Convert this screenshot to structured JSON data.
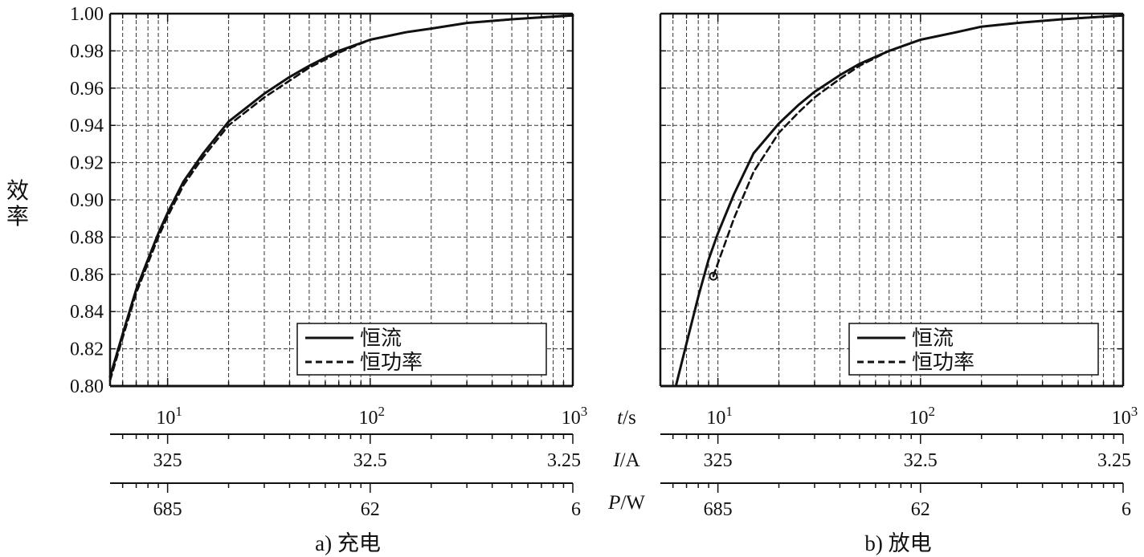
{
  "figure": {
    "ylabel": "效率",
    "unit_labels": {
      "t": "t/s",
      "I": "I/A",
      "P": "P/W"
    }
  },
  "chart_data": [
    {
      "type": "line",
      "caption": "a) 充电",
      "x_scale": "log",
      "xlim": [
        5.2,
        1000
      ],
      "ylim": [
        0.8,
        1.0
      ],
      "yticks": [
        "0.80",
        "0.82",
        "0.84",
        "0.86",
        "0.88",
        "0.90",
        "0.92",
        "0.94",
        "0.96",
        "0.98",
        "1.00"
      ],
      "x_ticks": [
        {
          "value": 10,
          "label": "10",
          "exp": "1"
        },
        {
          "value": 100,
          "label": "10",
          "exp": "2"
        },
        {
          "value": 1000,
          "label": "10",
          "exp": "3"
        }
      ],
      "current_ticks": [
        {
          "t": 10,
          "label": "325"
        },
        {
          "t": 100,
          "label": "32.5"
        },
        {
          "t": 1000,
          "label": "3.25"
        }
      ],
      "power_ticks": [
        {
          "t": 10,
          "label": "685"
        },
        {
          "t": 100,
          "label": "62"
        },
        {
          "t": 1000,
          "label": "6"
        }
      ],
      "legend": {
        "position": "bottom-right",
        "entries": [
          "恒流",
          "恒功率"
        ]
      },
      "series": [
        {
          "name": "恒流",
          "style": "solid",
          "x": [
            5.2,
            6,
            7,
            8,
            9,
            10,
            12,
            15,
            20,
            30,
            40,
            50,
            70,
            100,
            150,
            200,
            300,
            500,
            700,
            1000
          ],
          "y": [
            0.805,
            0.828,
            0.852,
            0.868,
            0.882,
            0.893,
            0.91,
            0.925,
            0.942,
            0.957,
            0.966,
            0.972,
            0.98,
            0.986,
            0.99,
            0.992,
            0.995,
            0.997,
            0.998,
            0.999
          ]
        },
        {
          "name": "恒功率",
          "style": "dashed",
          "x": [
            5.2,
            6,
            7,
            8,
            9,
            10,
            12,
            15,
            20,
            30,
            40,
            50,
            70,
            100,
            150,
            200,
            300,
            500,
            700,
            1000
          ],
          "y": [
            0.803,
            0.826,
            0.85,
            0.866,
            0.88,
            0.891,
            0.908,
            0.923,
            0.94,
            0.955,
            0.964,
            0.971,
            0.979,
            0.986,
            0.99,
            0.992,
            0.995,
            0.997,
            0.998,
            0.999
          ]
        }
      ]
    },
    {
      "type": "line",
      "caption": "b) 放电",
      "x_scale": "log",
      "xlim": [
        5.2,
        1000
      ],
      "ylim": [
        0.8,
        1.0
      ],
      "x_ticks": [
        {
          "value": 10,
          "label": "10",
          "exp": "1"
        },
        {
          "value": 100,
          "label": "10",
          "exp": "2"
        },
        {
          "value": 1000,
          "label": "10",
          "exp": "3"
        }
      ],
      "current_ticks": [
        {
          "t": 10,
          "label": "325"
        },
        {
          "t": 100,
          "label": "32.5"
        },
        {
          "t": 1000,
          "label": "3.25"
        }
      ],
      "power_ticks": [
        {
          "t": 10,
          "label": "685"
        },
        {
          "t": 100,
          "label": "62"
        },
        {
          "t": 1000,
          "label": "6"
        }
      ],
      "legend": {
        "position": "bottom-right",
        "entries": [
          "恒流",
          "恒功率"
        ]
      },
      "marker": {
        "x": 9.5,
        "y": 0.859,
        "shape": "circle"
      },
      "series": [
        {
          "name": "恒流",
          "style": "solid",
          "x": [
            6.2,
            7,
            8,
            9,
            10,
            12,
            15,
            20,
            25,
            30,
            40,
            50,
            70,
            100,
            150,
            200,
            300,
            500,
            700,
            1000
          ],
          "y": [
            0.8,
            0.823,
            0.848,
            0.868,
            0.882,
            0.903,
            0.925,
            0.941,
            0.951,
            0.958,
            0.967,
            0.973,
            0.98,
            0.986,
            0.99,
            0.993,
            0.995,
            0.997,
            0.998,
            0.999
          ]
        },
        {
          "name": "恒功率",
          "style": "dashed",
          "x": [
            9.5,
            10,
            12,
            15,
            20,
            25,
            30,
            40,
            50,
            70,
            100,
            150,
            200,
            300,
            500,
            700,
            1000
          ],
          "y": [
            0.859,
            0.866,
            0.89,
            0.915,
            0.936,
            0.947,
            0.955,
            0.965,
            0.972,
            0.98,
            0.986,
            0.99,
            0.993,
            0.995,
            0.997,
            0.998,
            0.999
          ]
        }
      ]
    }
  ]
}
